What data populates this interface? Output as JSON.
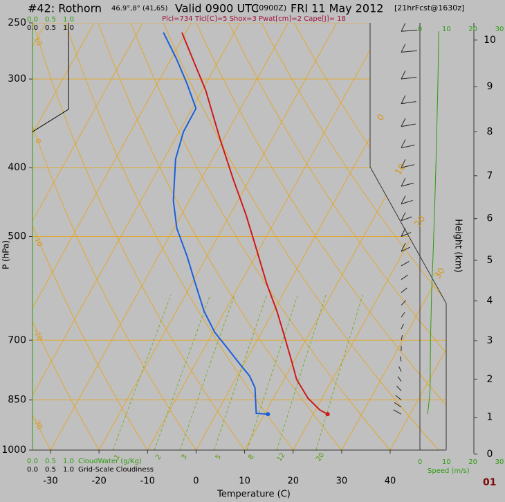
{
  "chart_data": {
    "type": "skewt",
    "title": "#42: Rothorn",
    "location": "46.9°,8° (41,65)",
    "valid": "Valid 0900 UTC",
    "valid_z": "(0900Z)",
    "date": "FRI 11 May 2012",
    "forecast": "[21hrFcst@1630z]",
    "subtitle": "Plcl=734 Tlcl[C]=5 Shox=3 Pwat[cm]=2 Cape[J]= 18",
    "xlabel": "Temperature (C)",
    "ylabel": "P (hPa)",
    "y2label": "Height (km)",
    "footer": "01",
    "xlim": [
      -30,
      40
    ],
    "xticks": [
      -30,
      -20,
      -10,
      0,
      10,
      20,
      30,
      40
    ],
    "ylim": [
      1000,
      250
    ],
    "yticks": [
      250,
      300,
      400,
      500,
      700,
      850,
      1000
    ],
    "log_y": true,
    "height_ticks": [
      0,
      1,
      2,
      3,
      4,
      5,
      6,
      7,
      8,
      9,
      10
    ],
    "series": [
      {
        "color": "#d01818",
        "pressure": [
          890,
          878,
          845,
          795,
          755,
          698,
          638,
          583,
          521,
          466,
          416,
          364,
          311,
          284,
          258
        ],
        "values": [
          23.0,
          20.9,
          17.1,
          12.6,
          9.9,
          5.7,
          0.8,
          -4.5,
          -10.6,
          -16.7,
          -23.3,
          -30.8,
          -39.3,
          -44.9,
          -50.8
        ]
      },
      {
        "color": "#1a5fd8",
        "pressure": [
          890,
          888,
          817,
          786,
          764,
          722,
          682,
          638,
          583,
          533,
          487,
          445,
          389,
          356,
          330,
          304,
          281,
          258
        ],
        "values": [
          10.7,
          8.2,
          5.0,
          2.5,
          0.0,
          -4.8,
          -9.7,
          -14.2,
          -19.2,
          -24.1,
          -29.4,
          -33.3,
          -37.6,
          -39.1,
          -39.2,
          -44.0,
          -48.9,
          -54.6
        ]
      }
    ],
    "isotherms": [
      -80,
      -70,
      -60,
      -50,
      -40,
      -30,
      -20,
      -10,
      0,
      10,
      20,
      30,
      40
    ],
    "isotherm_labels": [
      0,
      10,
      20,
      30
    ],
    "dry_adiabats": [
      -30,
      -20,
      -10,
      0,
      10,
      20,
      30,
      40,
      50,
      60,
      70,
      80,
      90
    ],
    "dry_adiabat_labels": [
      10,
      0,
      -10,
      -20,
      -30
    ],
    "mixing_ratios": [
      1,
      2,
      3,
      5,
      8,
      12,
      20
    ],
    "cloud_water": {
      "name": "CloudWater (g/Kg)",
      "color": "#2e9a10",
      "ticks": [
        {
          "value": 0,
          "label": "0.0"
        },
        0.5,
        {
          "value": 1,
          "label": "1.0"
        }
      ],
      "pressure": [
        1000,
        250
      ],
      "values": [
        0,
        0
      ]
    },
    "cloudiness": {
      "name": "Grid-Scale Cloudiness",
      "color": "#000000",
      "ticks": [
        {
          "value": 0,
          "label": "0.0"
        },
        0.5,
        {
          "value": 1,
          "label": "1.0"
        }
      ],
      "pressure": [
        356,
        331,
        250
      ],
      "values": [
        0,
        1,
        1
      ]
    },
    "wind": {
      "label": "Speed (m/s)",
      "color": "#2e9a10",
      "xlim": [
        0,
        30
      ],
      "xticks": [
        0,
        10,
        20,
        30
      ],
      "pressure": [
        890,
        870,
        850,
        825,
        800,
        775,
        750,
        725,
        700,
        675,
        650,
        625,
        600,
        575,
        550,
        525,
        500,
        475,
        450,
        425,
        400,
        375,
        350,
        325,
        300,
        275,
        257
      ],
      "values": [
        2.9,
        3.2,
        3.5,
        3.8,
        3.9,
        3.9,
        3.9,
        4.0,
        4.0,
        4.1,
        4.2,
        4.3,
        4.4,
        4.6,
        4.8,
        5.0,
        5.2,
        5.4,
        5.6,
        5.8,
        6.0,
        6.2,
        6.4,
        6.6,
        6.8,
        7.0,
        7.1
      ]
    }
  }
}
